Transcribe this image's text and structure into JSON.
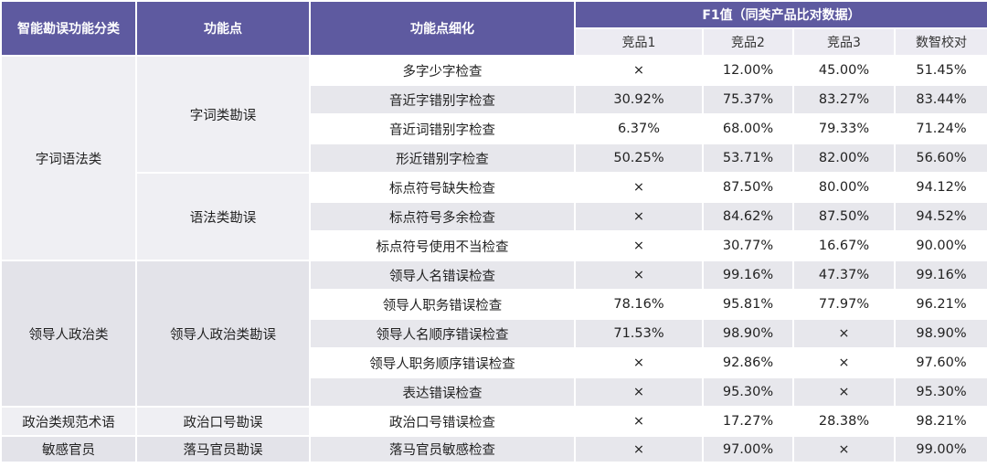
{
  "header": {
    "col1": "智能勘误功能分类",
    "col2": "功能点",
    "col3": "功能点细化",
    "group": "F1值（同类产品比对数据）",
    "products": [
      "竞品1",
      "竞品2",
      "竞品3",
      "数智校对"
    ]
  },
  "categories": [
    "字词语法类",
    "领导人政治类",
    "政治类规范术语",
    "敏感官员"
  ],
  "features": [
    "字词类勘误",
    "语法类勘误",
    "领导人政治类勘误",
    "政治口号勘误",
    "落马官员勘误"
  ],
  "rows": [
    {
      "detail": "多字少字检查",
      "v": [
        "×",
        "12.00%",
        "45.00%",
        "51.45%"
      ]
    },
    {
      "detail": "音近字错别字检查",
      "v": [
        "30.92%",
        "75.37%",
        "83.27%",
        "83.44%"
      ]
    },
    {
      "detail": "音近词错别字检查",
      "v": [
        "6.37%",
        "68.00%",
        "79.33%",
        "71.24%"
      ]
    },
    {
      "detail": "形近错别字检查",
      "v": [
        "50.25%",
        "53.71%",
        "82.00%",
        "56.60%"
      ]
    },
    {
      "detail": "标点符号缺失检查",
      "v": [
        "×",
        "87.50%",
        "80.00%",
        "94.12%"
      ]
    },
    {
      "detail": "标点符号多余检查",
      "v": [
        "×",
        "84.62%",
        "87.50%",
        "94.52%"
      ]
    },
    {
      "detail": "标点符号使用不当检查",
      "v": [
        "×",
        "30.77%",
        "16.67%",
        "90.00%"
      ]
    },
    {
      "detail": "领导人名错误检查",
      "v": [
        "×",
        "99.16%",
        "47.37%",
        "99.16%"
      ]
    },
    {
      "detail": "领导人职务错误检查",
      "v": [
        "78.16%",
        "95.81%",
        "77.97%",
        "96.21%"
      ]
    },
    {
      "detail": "领导人名顺序错误检查",
      "v": [
        "71.53%",
        "98.90%",
        "×",
        "98.90%"
      ]
    },
    {
      "detail": "领导人职务顺序错误检查",
      "v": [
        "×",
        "92.86%",
        "×",
        "97.60%"
      ]
    },
    {
      "detail": "表达错误检查",
      "v": [
        "×",
        "95.30%",
        "×",
        "95.30%"
      ]
    },
    {
      "detail": "政治口号错误检查",
      "v": [
        "×",
        "17.27%",
        "28.38%",
        "98.21%"
      ]
    },
    {
      "detail": "落马官员敏感检查",
      "v": [
        "×",
        "97.00%",
        "×",
        "99.00%"
      ]
    }
  ]
}
